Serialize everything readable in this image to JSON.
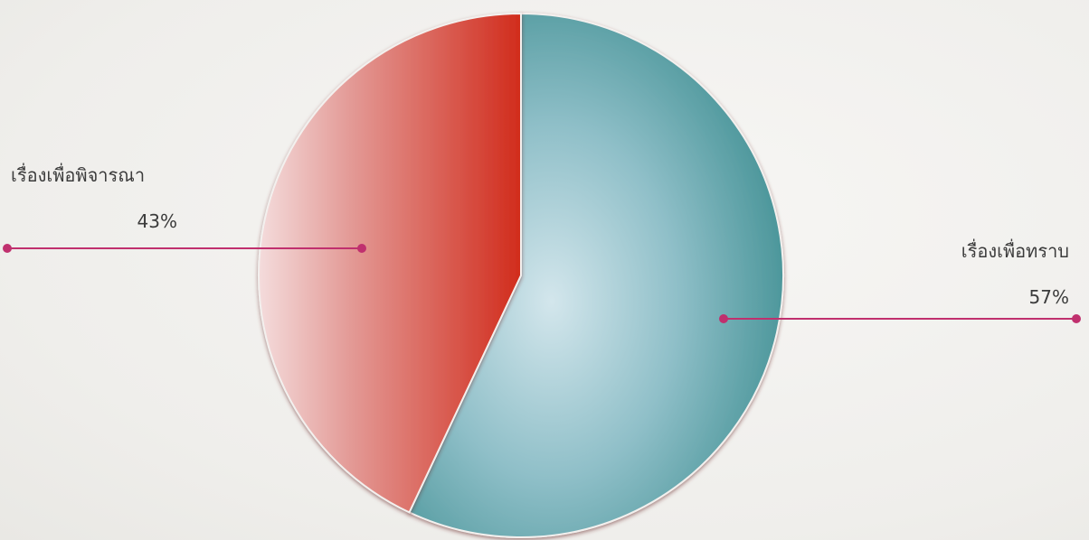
{
  "chart_data": {
    "type": "pie",
    "title": "",
    "slices": [
      {
        "label": "เรื่องเพื่อทราบ",
        "value": 57,
        "value_label": "57%",
        "color": "#3a8a8c"
      },
      {
        "label": "เรื่องเพื่อพิจารณา",
        "value": 43,
        "value_label": "43%",
        "color": "#d23a2c"
      }
    ],
    "leader_color": "#c0306e",
    "legend": "none"
  }
}
